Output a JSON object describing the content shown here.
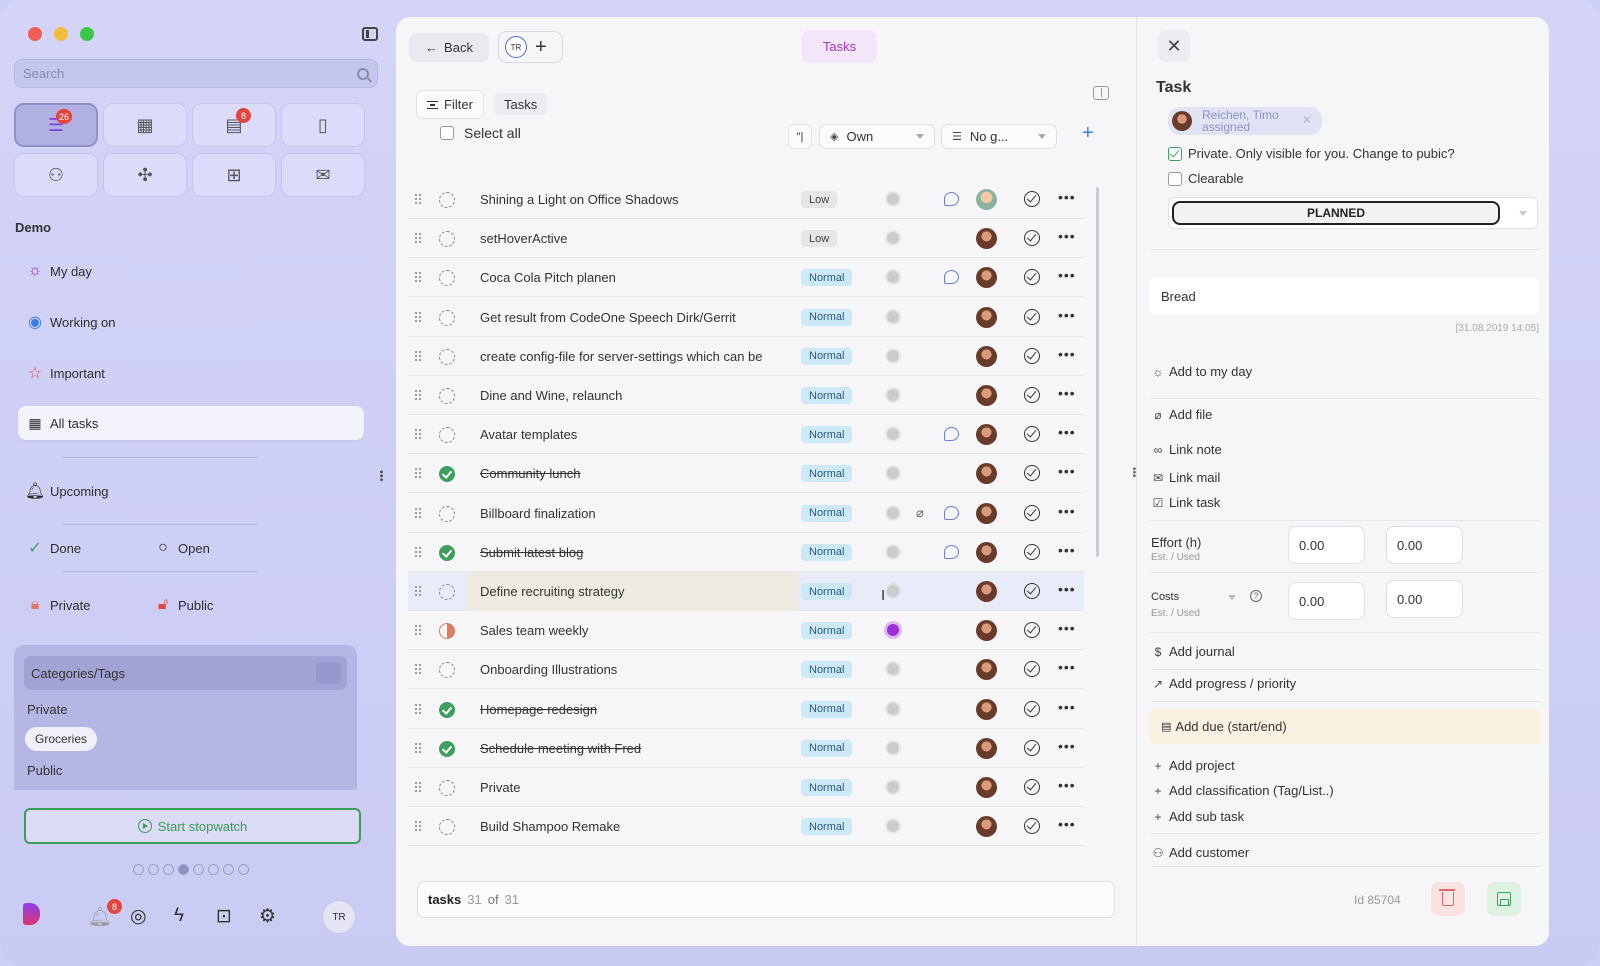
{
  "sidebar": {
    "search_placeholder": "Search",
    "apps": [
      {
        "name": "tasks-app",
        "icon": "checklist-icon",
        "glyph": "☰",
        "badge": "26",
        "active": true
      },
      {
        "name": "board-app",
        "icon": "board-icon",
        "glyph": "▦",
        "badge": null,
        "active": false
      },
      {
        "name": "calendar-app",
        "icon": "calendar-icon",
        "glyph": "▤",
        "badge": "8",
        "active": false
      },
      {
        "name": "notes-app",
        "icon": "document-icon",
        "glyph": "▯",
        "badge": null,
        "active": false
      },
      {
        "name": "contacts-app",
        "icon": "people-icon",
        "glyph": "⚇",
        "badge": null,
        "active": false
      },
      {
        "name": "deals-app",
        "icon": "handshake-icon",
        "glyph": "✣",
        "badge": null,
        "active": false
      },
      {
        "name": "widgets-app",
        "icon": "grid-x-icon",
        "glyph": "⊞",
        "badge": null,
        "active": false
      },
      {
        "name": "mail-app",
        "icon": "mail-icon",
        "glyph": "✉",
        "badge": null,
        "active": false
      }
    ],
    "section": "Demo",
    "nav": {
      "my_day": "My day",
      "working_on": "Working on",
      "important": "Important",
      "all_tasks": "All tasks",
      "upcoming": "Upcoming",
      "done": "Done",
      "open": "Open",
      "private": "Private",
      "public": "Public"
    },
    "categories": {
      "title": "Categories/Tags",
      "private_label": "Private",
      "private_chip": "Groceries",
      "public_label": "Public"
    },
    "stopwatch": "Start stopwatch",
    "bottom": {
      "notif_badge": "8",
      "avatar": "TR"
    }
  },
  "main": {
    "back": "Back",
    "tab_avatar": "TR",
    "active_tab": "Tasks",
    "filter": "Filter",
    "crumb": "Tasks",
    "select_all": "Select all",
    "owner_filter": "Own",
    "group_filter": "No g...",
    "tasks": [
      {
        "title": "Shining a Light on Office Shadows",
        "priority": "Low",
        "done": false,
        "state": "open",
        "comment": true,
        "attach": false,
        "myday": false,
        "avatar": "alt"
      },
      {
        "title": "setHoverActive",
        "priority": "Low",
        "done": false,
        "state": "open",
        "comment": false,
        "attach": false,
        "myday": false,
        "avatar": "default"
      },
      {
        "title": "Coca Cola Pitch planen",
        "priority": "Normal",
        "done": false,
        "state": "open",
        "comment": true,
        "attach": false,
        "myday": false,
        "avatar": "default"
      },
      {
        "title": "Get result from CodeOne Speech Dirk/Gerrit",
        "priority": "Normal",
        "done": false,
        "state": "open",
        "comment": false,
        "attach": false,
        "myday": false,
        "avatar": "default"
      },
      {
        "title": "create config-file for server-settings which can be",
        "priority": "Normal",
        "done": false,
        "state": "open",
        "comment": false,
        "attach": false,
        "myday": false,
        "avatar": "default"
      },
      {
        "title": "Dine and Wine, relaunch",
        "priority": "Normal",
        "done": false,
        "state": "open",
        "comment": false,
        "attach": false,
        "myday": false,
        "avatar": "default"
      },
      {
        "title": "Avatar templates",
        "priority": "Normal",
        "done": false,
        "state": "open",
        "comment": true,
        "attach": false,
        "myday": false,
        "avatar": "default"
      },
      {
        "title": "Community lunch",
        "priority": "Normal",
        "done": true,
        "state": "done",
        "comment": false,
        "attach": false,
        "myday": false,
        "avatar": "default"
      },
      {
        "title": "Billboard finalization",
        "priority": "Normal",
        "done": false,
        "state": "open",
        "comment": true,
        "attach": true,
        "myday": false,
        "avatar": "default"
      },
      {
        "title": "Submit latest blog",
        "priority": "Normal",
        "done": true,
        "state": "done",
        "comment": true,
        "attach": false,
        "myday": false,
        "avatar": "default"
      },
      {
        "title": "Define recruiting strategy",
        "priority": "Normal",
        "done": false,
        "state": "open",
        "comment": false,
        "attach": false,
        "myday": false,
        "avatar": "default",
        "highlight": true
      },
      {
        "title": "Sales team weekly",
        "priority": "Normal",
        "done": false,
        "state": "half",
        "comment": false,
        "attach": false,
        "myday": true,
        "avatar": "default"
      },
      {
        "title": "Onboarding Illustrations",
        "priority": "Normal",
        "done": false,
        "state": "open",
        "comment": false,
        "attach": false,
        "myday": false,
        "avatar": "default"
      },
      {
        "title": "Homepage redesign",
        "priority": "Normal",
        "done": true,
        "state": "done",
        "comment": false,
        "attach": false,
        "myday": false,
        "avatar": "default"
      },
      {
        "title": "Schedule meeting with Fred",
        "priority": "Normal",
        "done": true,
        "state": "done",
        "comment": false,
        "attach": false,
        "myday": false,
        "avatar": "default"
      },
      {
        "title": "Private",
        "priority": "Normal",
        "done": false,
        "state": "open",
        "comment": false,
        "attach": false,
        "myday": false,
        "avatar": "default"
      },
      {
        "title": "Build Shampoo Remake",
        "priority": "Normal",
        "done": false,
        "state": "open",
        "comment": false,
        "attach": false,
        "myday": false,
        "avatar": "default"
      }
    ],
    "footer": {
      "label": "tasks",
      "count": "31",
      "of": "of",
      "total": "31"
    }
  },
  "detail": {
    "title": "Task",
    "assignee_name": "Reichen, Timo",
    "assignee_role": "assigned",
    "private_text": "Private.  Only visible for you. Change to pubic?",
    "clearable": "Clearable",
    "status": "PLANNED",
    "note": "Bread",
    "note_date": "[31.08.2019 14:05]",
    "actions": {
      "add_my_day": "Add to my day",
      "add_file": "Add file",
      "link_note": "Link note",
      "link_mail": "Link mail",
      "link_task": "Link task",
      "add_journal": "Add journal",
      "add_progress": "Add progress / priority",
      "add_due": "Add due (start/end)",
      "add_project": "Add project",
      "add_classification": "Add classification (Tag/List..)",
      "add_subtask": "Add sub task",
      "add_customer": "Add customer"
    },
    "effort": {
      "label": "Effort (h)",
      "sub_est": "Est.",
      "sub_sep": "/",
      "sub_used": "Used",
      "est": "0.00",
      "used": "0.00"
    },
    "costs": {
      "label": "Costs",
      "sub_est": "Est.",
      "sub_sep": "/",
      "sub_used": "Used",
      "est": "0.00",
      "used": "0.00"
    },
    "id_label": "Id 85704"
  }
}
